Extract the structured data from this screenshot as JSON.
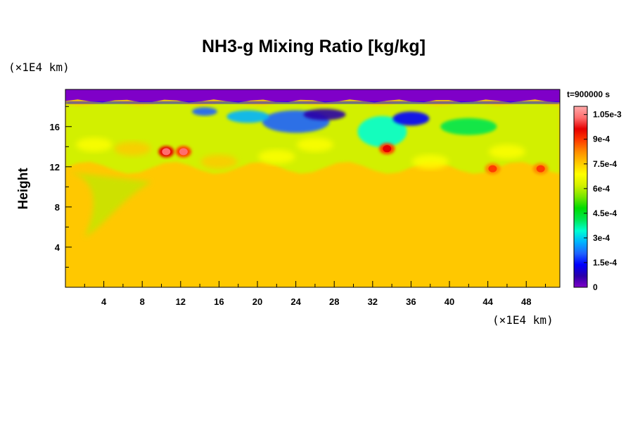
{
  "chart_data": {
    "type": "heatmap",
    "title": "NH3-g Mixing Ratio [kg/kg]",
    "xlabel": "",
    "xunit": "(×1E4 km)",
    "ylabel": "Height",
    "yunit": "(×1E4 km)",
    "time_label": "t=900000 s",
    "xlim": [
      0,
      51.5
    ],
    "ylim": [
      0,
      19.7
    ],
    "x_ticks": [
      4,
      8,
      12,
      16,
      20,
      24,
      28,
      32,
      36,
      40,
      44,
      48
    ],
    "x_tick_labels": [
      "4",
      "8",
      "12",
      "16",
      "20",
      "24",
      "28",
      "32",
      "36",
      "40",
      "44",
      "48"
    ],
    "y_ticks": [
      4,
      8,
      12,
      16
    ],
    "y_tick_labels": [
      "4",
      "8",
      "12",
      "16"
    ],
    "colorbar": {
      "range": [
        0,
        0.0011
      ],
      "ticks": [
        0,
        0.00015,
        0.0003,
        0.00045,
        0.0006,
        0.00075,
        0.0009,
        0.00105
      ],
      "tick_labels": [
        "0",
        "1.5e-4",
        "3e-4",
        "4.5e-4",
        "6e-4",
        "7.5e-4",
        "9e-4",
        "1.05e-3"
      ],
      "colors": [
        "#7f00c8",
        "#2a00a8",
        "#0000ff",
        "#1e64ff",
        "#00b4ff",
        "#00ffd2",
        "#00e650",
        "#00dc00",
        "#78e600",
        "#d2f000",
        "#ffff00",
        "#ffc800",
        "#ff8c00",
        "#ff3c00",
        "#e60000",
        "#ff6e6e",
        "#ffaaaa"
      ]
    },
    "field_summary": {
      "background_value": 0.00077,
      "upper_layer_value": 0,
      "cloud_top_height": 18.3,
      "mixing_layer_bottom": 11.5,
      "peak_value": 0.00105,
      "peak_regions": [
        {
          "x": 10.5,
          "y": 13.5,
          "value": 0.00105
        },
        {
          "x": 12.3,
          "y": 13.5,
          "value": 0.001
        },
        {
          "x": 33.5,
          "y": 13.8,
          "value": 0.00095
        },
        {
          "x": 44.5,
          "y": 11.8,
          "value": 0.0009
        },
        {
          "x": 49.5,
          "y": 11.8,
          "value": 0.0009
        }
      ]
    }
  }
}
